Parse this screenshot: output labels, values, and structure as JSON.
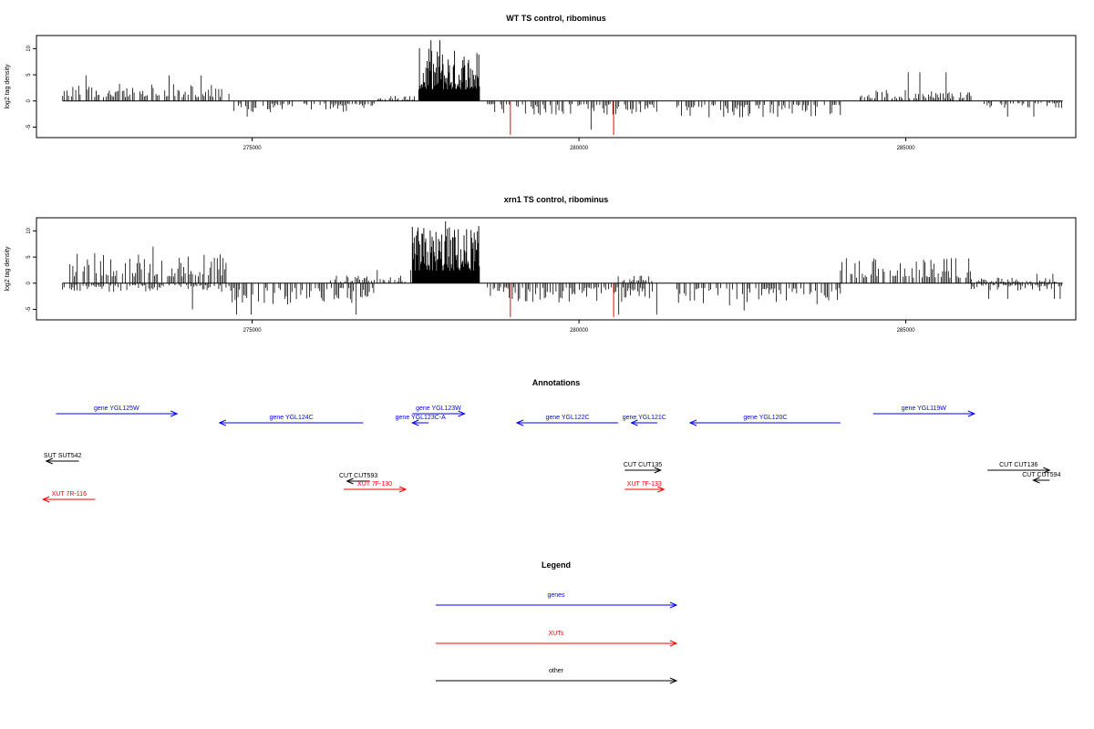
{
  "colors": {
    "gene": "#0000ff",
    "xut": "#ff0000",
    "other": "#000000",
    "signal": "#000000",
    "highlight": "#ff0000"
  },
  "chart_data": [
    {
      "type": "bar",
      "title": "WT TS control, ribominus",
      "ylabel": "log2 tag density",
      "xlim": [
        271700,
        287600
      ],
      "ylim": [
        -7,
        12.5
      ],
      "xticks": [
        275000,
        280000,
        285000
      ],
      "yticks": [
        -5,
        0,
        5,
        10
      ],
      "signal_segments": [
        {
          "start": 272100,
          "end": 274650,
          "strand": "+",
          "mean": 1.8,
          "max": 4.9
        },
        {
          "start": 274700,
          "end": 276900,
          "strand": "-",
          "mean": -1.2,
          "max": -3.0
        },
        {
          "start": 276900,
          "end": 277500,
          "strand": "+",
          "mean": 0.6,
          "max": 2.0
        },
        {
          "start": 277550,
          "end": 278480,
          "strand": "+",
          "mean": 5.5,
          "max": 11.6
        },
        {
          "start": 278600,
          "end": 281200,
          "strand": "-",
          "mean": -1.5,
          "max": -5.5
        },
        {
          "start": 281500,
          "end": 284000,
          "strand": "-",
          "mean": -1.8,
          "max": -4.7
        },
        {
          "start": 284300,
          "end": 286000,
          "strand": "+",
          "mean": 1.2,
          "max": 5.5
        },
        {
          "start": 286200,
          "end": 287400,
          "strand": "-",
          "mean": -0.8,
          "max": -3.0
        }
      ],
      "highlights": [
        {
          "x": 278950,
          "y": -6.5
        },
        {
          "x": 280530,
          "y": -6.5
        }
      ]
    },
    {
      "type": "bar",
      "title": "xrn1 TS control, ribominus",
      "ylabel": "log2 tag density",
      "xlim": [
        271700,
        287600
      ],
      "ylim": [
        -7,
        12.5
      ],
      "xticks": [
        275000,
        280000,
        285000
      ],
      "yticks": [
        -5,
        0,
        5,
        10
      ],
      "signal_segments": [
        {
          "start": 272100,
          "end": 274650,
          "strand": "+",
          "mean": 3.3,
          "max": 7.0
        },
        {
          "start": 272100,
          "end": 274650,
          "strand": "-",
          "mean": -0.9,
          "max": -5.0
        },
        {
          "start": 274650,
          "end": 276900,
          "strand": "-",
          "mean": -2.2,
          "max": -6.0
        },
        {
          "start": 276200,
          "end": 277500,
          "strand": "+",
          "mean": 0.8,
          "max": 2.5
        },
        {
          "start": 277450,
          "end": 278480,
          "strand": "+",
          "mean": 6.0,
          "max": 11.8
        },
        {
          "start": 278600,
          "end": 281200,
          "strand": "-",
          "mean": -2.0,
          "max": -6.0
        },
        {
          "start": 280600,
          "end": 281200,
          "strand": "+",
          "mean": 0.8,
          "max": 2.5
        },
        {
          "start": 281500,
          "end": 284000,
          "strand": "-",
          "mean": -2.3,
          "max": -5.2
        },
        {
          "start": 284000,
          "end": 286000,
          "strand": "+",
          "mean": 2.6,
          "max": 6.3
        },
        {
          "start": 286000,
          "end": 287400,
          "strand": "-",
          "mean": -0.8,
          "max": -3.0
        },
        {
          "start": 286000,
          "end": 287400,
          "strand": "+",
          "mean": 0.6,
          "max": 1.8
        }
      ],
      "highlights": [
        {
          "x": 278950,
          "y": -6.5
        },
        {
          "x": 280530,
          "y": -6.5
        }
      ]
    }
  ],
  "annotations": {
    "title": "Annotations",
    "features": [
      {
        "label": "gene YGL125W",
        "category": "gene",
        "start": 272000,
        "end": 273850,
        "strand": "+",
        "row": 0
      },
      {
        "label": "gene YGL124C",
        "category": "gene",
        "start": 274500,
        "end": 276700,
        "strand": "-",
        "row": 1
      },
      {
        "label": "gene YGL123W",
        "category": "gene",
        "start": 277450,
        "end": 278250,
        "strand": "+",
        "row": 0
      },
      {
        "label": "gene YGL123C-A",
        "category": "gene",
        "start": 277450,
        "end": 277700,
        "strand": "-",
        "row": 1
      },
      {
        "label": "gene YGL122C",
        "category": "gene",
        "start": 279050,
        "end": 280600,
        "strand": "-",
        "row": 1
      },
      {
        "label": "gene YGL121C",
        "category": "gene",
        "start": 280800,
        "end": 281200,
        "strand": "-",
        "row": 1
      },
      {
        "label": "gene YGL120C",
        "category": "gene",
        "start": 281700,
        "end": 284000,
        "strand": "-",
        "row": 1
      },
      {
        "label": "gene YGL119W",
        "category": "gene",
        "start": 284500,
        "end": 286050,
        "strand": "+",
        "row": 0
      },
      {
        "label": "SUT SUT542",
        "category": "other",
        "start": 271850,
        "end": 272350,
        "strand": "-",
        "row": 2
      },
      {
        "label": "CUT CUT593",
        "category": "other",
        "start": 276450,
        "end": 276800,
        "strand": "-",
        "row": 3
      },
      {
        "label": "CUT CUT135",
        "category": "other",
        "start": 280700,
        "end": 281250,
        "strand": "+",
        "row": 4
      },
      {
        "label": "CUT CUT136",
        "category": "other",
        "start": 286250,
        "end": 287200,
        "strand": "+",
        "row": 4
      },
      {
        "label": "CUT CUT594",
        "category": "other",
        "start": 286950,
        "end": 287200,
        "strand": "-",
        "row": 5
      },
      {
        "label": "XUT 7R-116",
        "category": "xut",
        "start": 271800,
        "end": 272600,
        "strand": "-",
        "row": 6
      },
      {
        "label": "XUT 7F-130",
        "category": "xut",
        "start": 276400,
        "end": 277350,
        "strand": "+",
        "row": 7
      },
      {
        "label": "XUT 7F-133",
        "category": "xut",
        "start": 280700,
        "end": 281300,
        "strand": "+",
        "row": 7
      }
    ]
  },
  "legend": {
    "title": "Legend",
    "items": [
      {
        "label": "genes",
        "category": "gene"
      },
      {
        "label": "XUTs",
        "category": "xut"
      },
      {
        "label": "other",
        "category": "other"
      }
    ]
  }
}
